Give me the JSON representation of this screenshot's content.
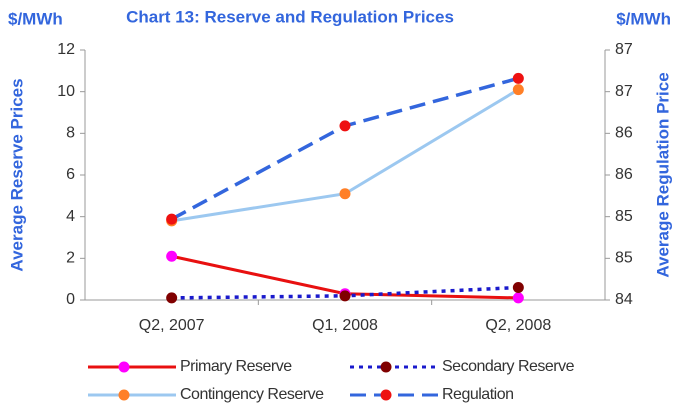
{
  "chart_data": {
    "type": "line",
    "title": "Chart 13: Reserve and Regulation Prices",
    "y_unit": "$/MWh",
    "y2_unit": "$/MWh",
    "y_label": "Average Reserve Prices",
    "y2_label": "Average Regulation Price",
    "categories": [
      "Q2, 2007",
      "Q1, 2008",
      "Q2, 2008"
    ],
    "ylim": [
      0,
      12
    ],
    "yticks": [
      0,
      2,
      4,
      6,
      8,
      10,
      12
    ],
    "y2lim": [
      84,
      87
    ],
    "y2ticks": [
      84,
      {
        "value": 84.5,
        "label": "85"
      },
      85,
      {
        "value": 85.5,
        "label": "86"
      },
      86,
      {
        "value": 86.5,
        "label": "87"
      },
      87
    ],
    "grid": false,
    "legend": "bottom",
    "series": [
      {
        "name": "Primary Reserve",
        "color": "#e81010",
        "marker_color": "#ff00ff",
        "line_style": "solid",
        "values": [
          2.1,
          0.3,
          0.1
        ]
      },
      {
        "name": "Secondary Reserve",
        "color": "#1a1acc",
        "marker_color": "#800000",
        "line_style": "dotted",
        "values": [
          0.1,
          0.2,
          0.6
        ]
      },
      {
        "name": "Contingency Reserve",
        "color": "#9cc8f0",
        "marker_color": "#ff7f27",
        "line_style": "solid",
        "values": [
          3.8,
          5.1,
          10.1
        ]
      },
      {
        "name": "Regulation",
        "color": "#3366dd",
        "marker_color": "#ee1111",
        "line_style": "dashed",
        "axis": "y2",
        "values": [
          84.97,
          86.09,
          86.66
        ]
      }
    ]
  }
}
